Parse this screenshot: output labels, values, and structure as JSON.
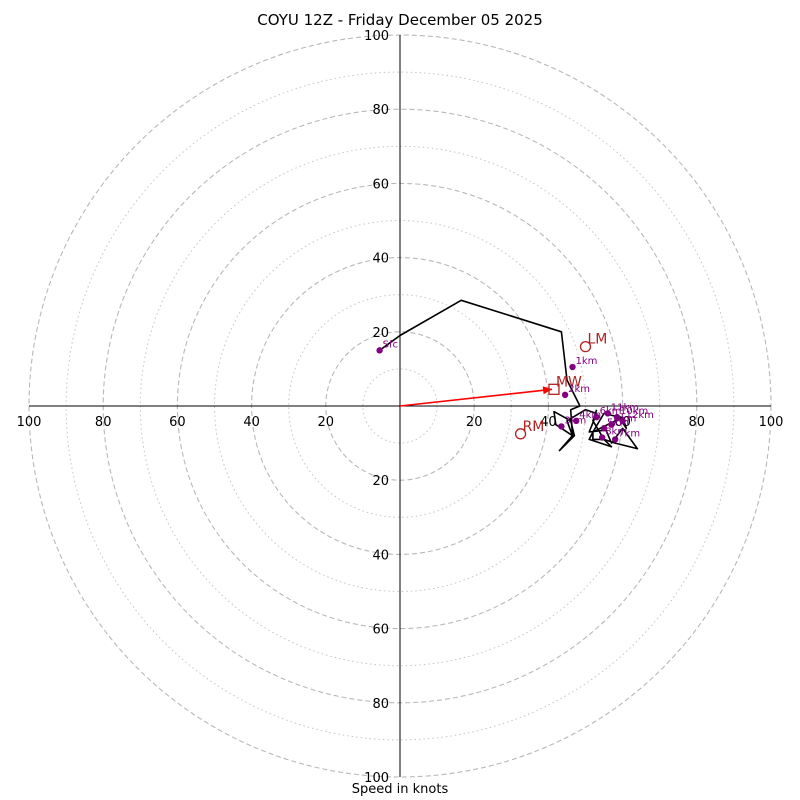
{
  "chart_data": {
    "type": "line",
    "title": "COYU 12Z - Friday December 05 2025",
    "xlabel": "Speed in knots",
    "units": "knots",
    "rmax": 100,
    "ring_major": [
      20,
      40,
      60,
      80,
      100
    ],
    "ring_minor": [
      10,
      30,
      50,
      70,
      90
    ],
    "tick_labels": {
      "right": [
        "20",
        "40",
        "60",
        "80",
        "100"
      ],
      "left": [
        "20",
        "40",
        "60",
        "80",
        "100"
      ],
      "up": [
        "20",
        "40",
        "60",
        "80",
        "100"
      ],
      "down": [
        "20",
        "40",
        "60",
        "80",
        "100"
      ]
    },
    "grid": true,
    "hodograph": {
      "color": "#000000",
      "points": [
        [
          -5.5,
          15
        ],
        [
          0,
          19
        ],
        [
          16.5,
          28.5
        ],
        [
          43.5,
          20
        ],
        [
          45,
          7
        ],
        [
          48.5,
          0
        ],
        [
          46,
          -1
        ],
        [
          46.5,
          -8
        ],
        [
          42,
          -5
        ],
        [
          41.5,
          -1.5
        ],
        [
          46,
          -4
        ],
        [
          47,
          -8
        ],
        [
          43,
          -12
        ],
        [
          46.5,
          -8
        ],
        [
          45,
          -4
        ],
        [
          50,
          -1
        ],
        [
          53,
          -2
        ],
        [
          51,
          -7
        ],
        [
          55.5,
          -6.5
        ],
        [
          57,
          -10
        ],
        [
          60,
          -6
        ],
        [
          64,
          -11.5
        ],
        [
          58,
          -10
        ],
        [
          55,
          -9
        ],
        [
          57,
          -11
        ],
        [
          51,
          -9
        ],
        [
          52,
          -7
        ],
        [
          58,
          -4
        ],
        [
          60,
          -3
        ],
        [
          61,
          -6
        ],
        [
          59,
          -3
        ],
        [
          55,
          -2
        ],
        [
          52,
          -7
        ],
        [
          52,
          -9
        ],
        [
          55,
          -9
        ],
        [
          52,
          -4
        ],
        [
          53,
          -1
        ]
      ]
    },
    "levels": [
      {
        "label": "Sfc",
        "x": -5.5,
        "y": 15
      },
      {
        "label": "1km",
        "x": 46.5,
        "y": 10.5
      },
      {
        "label": "2km",
        "x": 44.5,
        "y": 3
      },
      {
        "label": "3km",
        "x": 43.5,
        "y": -5.5
      },
      {
        "label": "4km",
        "x": 47.5,
        "y": -4
      },
      {
        "label": "5km",
        "x": 55,
        "y": -6
      },
      {
        "label": "6km",
        "x": 53,
        "y": -3
      },
      {
        "label": "7km",
        "x": 58,
        "y": -9
      },
      {
        "label": "8km",
        "x": 54.5,
        "y": -8.5
      },
      {
        "label": "9km",
        "x": 57,
        "y": -5
      },
      {
        "label": "10km",
        "x": 58.5,
        "y": -3
      },
      {
        "label": "11km",
        "x": 56,
        "y": -2
      },
      {
        "label": "12km",
        "x": 60,
        "y": -4
      }
    ],
    "level_color": "#800080",
    "storm_motion": [
      {
        "label": "LM",
        "x": 50,
        "y": 16,
        "marker": "circle"
      },
      {
        "label": "MW",
        "x": 41.5,
        "y": 4.5,
        "marker": "square"
      },
      {
        "label": "RM",
        "x": 32.5,
        "y": -7.5,
        "marker": "circle"
      }
    ],
    "storm_color": "#b22222",
    "shear_vector": {
      "from": [
        0,
        0
      ],
      "to": [
        41,
        4.5
      ],
      "color": "#ff0000"
    }
  }
}
